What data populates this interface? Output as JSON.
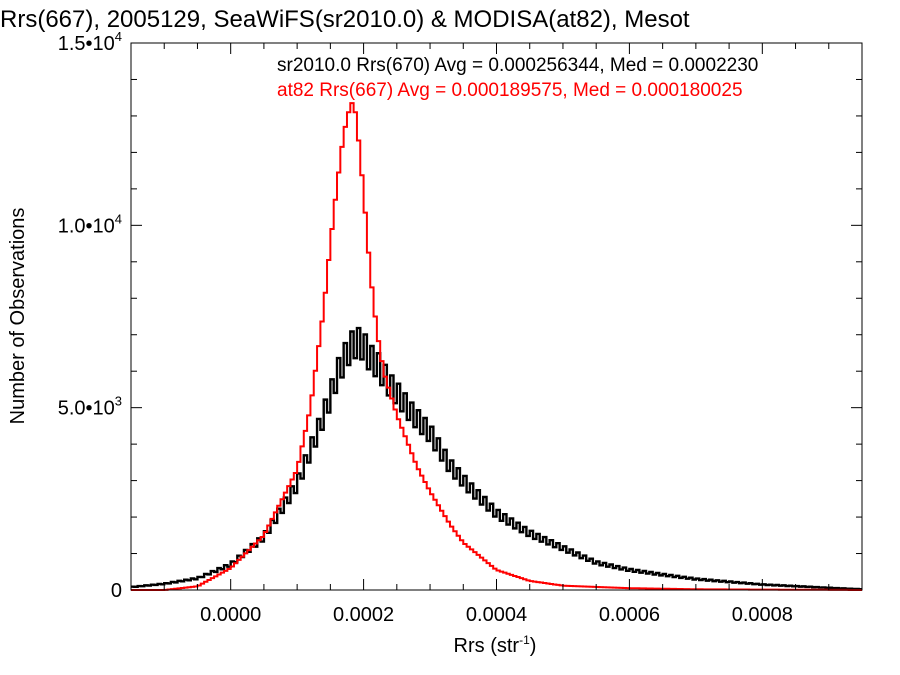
{
  "chart_data": {
    "type": "line",
    "title": "Rrs(667), 2005129, SeaWiFS(sr2010.0) & MODISA(at82), Mesot",
    "xlabel": "Rrs (str",
    "xlabel_sup": "-1",
    "xlabel_close": ")",
    "ylabel": "Number of Observations",
    "xlim": [
      -0.00015,
      0.00095
    ],
    "ylim": [
      0,
      15000
    ],
    "x_ticks": [
      {
        "value": 0.0,
        "label": "0.0000"
      },
      {
        "value": 0.0002,
        "label": "0.0002"
      },
      {
        "value": 0.0004,
        "label": "0.0004"
      },
      {
        "value": 0.0006,
        "label": "0.0006"
      },
      {
        "value": 0.0008,
        "label": "0.0008"
      }
    ],
    "y_ticks": [
      {
        "value": 0,
        "label": "0",
        "sup": ""
      },
      {
        "value": 5000,
        "label": "5.0•10",
        "sup": "3"
      },
      {
        "value": 10000,
        "label": "1.0•10",
        "sup": "4"
      },
      {
        "value": 15000,
        "label": "1.5•10",
        "sup": "4"
      }
    ],
    "grid": false,
    "legend_position": "top-right",
    "series": [
      {
        "label": "sr2010.0 Rrs(670) Avg = 0.000256344, Med = 0.0002230",
        "color": "#000000",
        "x": [
          -0.00015,
          -0.0001,
          -5e-05,
          0.0,
          5e-05,
          0.0001,
          0.00013,
          0.00015,
          0.00016,
          0.00017,
          0.00018,
          0.00019,
          0.0002,
          0.00021,
          0.00022,
          0.00023,
          0.00024,
          0.00025,
          0.00027,
          0.0003,
          0.00033,
          0.00036,
          0.0004,
          0.00045,
          0.0005,
          0.00055,
          0.0006,
          0.00065,
          0.0007,
          0.0008,
          0.0009,
          0.00095
        ],
        "y": [
          80,
          170,
          320,
          700,
          1450,
          2900,
          4300,
          5300,
          5900,
          6300,
          6650,
          6800,
          6700,
          6350,
          6200,
          5900,
          5600,
          5400,
          4900,
          4300,
          3400,
          2800,
          2100,
          1550,
          1150,
          750,
          550,
          420,
          300,
          150,
          60,
          20
        ]
      },
      {
        "label": "at82 Rrs(667) Avg = 0.000189575, Med = 0.000180025",
        "color": "#ff0000",
        "x": [
          -0.00015,
          -0.0001,
          -5e-05,
          0.0,
          5e-05,
          0.0001,
          0.00012,
          0.00014,
          0.00015,
          0.00016,
          0.00017,
          0.00018,
          0.000185,
          0.00019,
          0.0002,
          0.00021,
          0.00022,
          0.00023,
          0.00025,
          0.00028,
          0.0003,
          0.00033,
          0.00035,
          0.0004,
          0.00045,
          0.0005,
          0.0006,
          0.0007,
          0.0008,
          0.0009,
          0.00095
        ],
        "y": [
          0,
          0,
          100,
          600,
          1500,
          3300,
          5000,
          7700,
          9500,
          11100,
          12500,
          13300,
          13400,
          12800,
          10900,
          8700,
          7100,
          6000,
          4800,
          3400,
          2700,
          1800,
          1300,
          550,
          250,
          120,
          50,
          20,
          10,
          5,
          0
        ]
      }
    ]
  }
}
